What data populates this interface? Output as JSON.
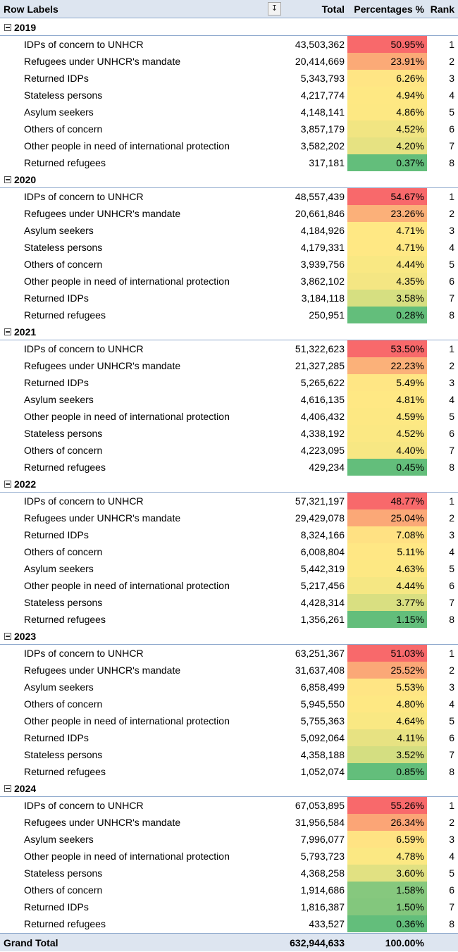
{
  "header": {
    "row_labels": "Row Labels",
    "total": "Total",
    "percentages": "Percentages %",
    "rank": "Rank",
    "filter_icon": "sort-filter-icon"
  },
  "groups": [
    {
      "year": "2019",
      "items": [
        {
          "label": "IDPs of concern to UNHCR",
          "total": "43,503,362",
          "pct": "50.95%",
          "pct_value": 50.95,
          "rank": "1",
          "color": "#f8696b"
        },
        {
          "label": "Refugees under UNHCR's mandate",
          "total": "20,414,669",
          "pct": "23.91%",
          "pct_value": 23.91,
          "rank": "2",
          "color": "#fbaa77"
        },
        {
          "label": "Returned IDPs",
          "total": "5,343,793",
          "pct": "6.26%",
          "pct_value": 6.26,
          "rank": "3",
          "color": "#ffe584"
        },
        {
          "label": "Stateless persons",
          "total": "4,217,774",
          "pct": "4.94%",
          "pct_value": 4.94,
          "rank": "4",
          "color": "#fee883"
        },
        {
          "label": "Asylum seekers",
          "total": "4,148,141",
          "pct": "4.86%",
          "pct_value": 4.86,
          "rank": "5",
          "color": "#fde883"
        },
        {
          "label": "Others of concern",
          "total": "3,857,179",
          "pct": "4.52%",
          "pct_value": 4.52,
          "rank": "6",
          "color": "#f1e582"
        },
        {
          "label": "Other people in need of international protection",
          "total": "3,582,202",
          "pct": "4.20%",
          "pct_value": 4.2,
          "rank": "7",
          "color": "#e6e282"
        },
        {
          "label": "Returned refugees",
          "total": "317,181",
          "pct": "0.37%",
          "pct_value": 0.37,
          "rank": "8",
          "color": "#63be7b"
        }
      ]
    },
    {
      "year": "2020",
      "items": [
        {
          "label": "IDPs of concern to UNHCR",
          "total": "48,557,439",
          "pct": "54.67%",
          "pct_value": 54.67,
          "rank": "1",
          "color": "#f8696b"
        },
        {
          "label": "Refugees under UNHCR's mandate",
          "total": "20,661,846",
          "pct": "23.26%",
          "pct_value": 23.26,
          "rank": "2",
          "color": "#fbb079"
        },
        {
          "label": "Asylum seekers",
          "total": "4,184,926",
          "pct": "4.71%",
          "pct_value": 4.71,
          "rank": "3",
          "color": "#ffe884"
        },
        {
          "label": "Stateless persons",
          "total": "4,179,331",
          "pct": "4.71%",
          "pct_value": 4.71,
          "rank": "4",
          "color": "#ffe884"
        },
        {
          "label": "Others of concern",
          "total": "3,939,756",
          "pct": "4.44%",
          "pct_value": 4.44,
          "rank": "5",
          "color": "#f9e883"
        },
        {
          "label": "Other people in need of international protection",
          "total": "3,862,102",
          "pct": "4.35%",
          "pct_value": 4.35,
          "rank": "6",
          "color": "#f4e683"
        },
        {
          "label": "Returned IDPs",
          "total": "3,184,118",
          "pct": "3.58%",
          "pct_value": 3.58,
          "rank": "7",
          "color": "#d6df81"
        },
        {
          "label": "Returned refugees",
          "total": "250,951",
          "pct": "0.28%",
          "pct_value": 0.28,
          "rank": "8",
          "color": "#63be7b"
        }
      ]
    },
    {
      "year": "2021",
      "items": [
        {
          "label": "IDPs of concern to UNHCR",
          "total": "51,322,623",
          "pct": "53.50%",
          "pct_value": 53.5,
          "rank": "1",
          "color": "#f8696b"
        },
        {
          "label": "Refugees under UNHCR's mandate",
          "total": "21,327,285",
          "pct": "22.23%",
          "pct_value": 22.23,
          "rank": "2",
          "color": "#fbb179"
        },
        {
          "label": "Returned IDPs",
          "total": "5,265,622",
          "pct": "5.49%",
          "pct_value": 5.49,
          "rank": "3",
          "color": "#ffe684"
        },
        {
          "label": "Asylum seekers",
          "total": "4,616,135",
          "pct": "4.81%",
          "pct_value": 4.81,
          "rank": "4",
          "color": "#ffe884"
        },
        {
          "label": "Other people in need of international protection",
          "total": "4,406,432",
          "pct": "4.59%",
          "pct_value": 4.59,
          "rank": "5",
          "color": "#fde883"
        },
        {
          "label": "Stateless persons",
          "total": "4,338,192",
          "pct": "4.52%",
          "pct_value": 4.52,
          "rank": "6",
          "color": "#fbe883"
        },
        {
          "label": "Others of concern",
          "total": "4,223,095",
          "pct": "4.40%",
          "pct_value": 4.4,
          "rank": "7",
          "color": "#f7e783"
        },
        {
          "label": "Returned refugees",
          "total": "429,234",
          "pct": "0.45%",
          "pct_value": 0.45,
          "rank": "8",
          "color": "#63be7b"
        }
      ]
    },
    {
      "year": "2022",
      "items": [
        {
          "label": "IDPs of concern to UNHCR",
          "total": "57,321,197",
          "pct": "48.77%",
          "pct_value": 48.77,
          "rank": "1",
          "color": "#f8696b"
        },
        {
          "label": "Refugees under UNHCR's mandate",
          "total": "29,429,078",
          "pct": "25.04%",
          "pct_value": 25.04,
          "rank": "2",
          "color": "#fba877"
        },
        {
          "label": "Returned IDPs",
          "total": "8,324,166",
          "pct": "7.08%",
          "pct_value": 7.08,
          "rank": "3",
          "color": "#ffe183"
        },
        {
          "label": "Others of concern",
          "total": "6,008,804",
          "pct": "5.11%",
          "pct_value": 5.11,
          "rank": "4",
          "color": "#ffe784"
        },
        {
          "label": "Asylum seekers",
          "total": "5,442,319",
          "pct": "4.63%",
          "pct_value": 4.63,
          "rank": "5",
          "color": "#fde883"
        },
        {
          "label": "Other people in need of international protection",
          "total": "5,217,456",
          "pct": "4.44%",
          "pct_value": 4.44,
          "rank": "6",
          "color": "#f5e783"
        },
        {
          "label": "Stateless persons",
          "total": "4,428,314",
          "pct": "3.77%",
          "pct_value": 3.77,
          "rank": "7",
          "color": "#d9df81"
        },
        {
          "label": "Returned refugees",
          "total": "1,356,261",
          "pct": "1.15%",
          "pct_value": 1.15,
          "rank": "8",
          "color": "#63be7b"
        }
      ]
    },
    {
      "year": "2023",
      "items": [
        {
          "label": "IDPs of concern to UNHCR",
          "total": "63,251,367",
          "pct": "51.03%",
          "pct_value": 51.03,
          "rank": "1",
          "color": "#f8696b"
        },
        {
          "label": "Refugees under UNHCR's mandate",
          "total": "31,637,408",
          "pct": "25.52%",
          "pct_value": 25.52,
          "rank": "2",
          "color": "#fba877"
        },
        {
          "label": "Asylum seekers",
          "total": "6,858,499",
          "pct": "5.53%",
          "pct_value": 5.53,
          "rank": "3",
          "color": "#ffe584"
        },
        {
          "label": "Others of concern",
          "total": "5,945,550",
          "pct": "4.80%",
          "pct_value": 4.8,
          "rank": "4",
          "color": "#fee883"
        },
        {
          "label": "Other people in need of international protection",
          "total": "5,755,363",
          "pct": "4.64%",
          "pct_value": 4.64,
          "rank": "5",
          "color": "#f9e883"
        },
        {
          "label": "Returned IDPs",
          "total": "5,092,064",
          "pct": "4.11%",
          "pct_value": 4.11,
          "rank": "6",
          "color": "#e7e282"
        },
        {
          "label": "Stateless persons",
          "total": "4,358,188",
          "pct": "3.52%",
          "pct_value": 3.52,
          "rank": "7",
          "color": "#d4de81"
        },
        {
          "label": "Returned refugees",
          "total": "1,052,074",
          "pct": "0.85%",
          "pct_value": 0.85,
          "rank": "8",
          "color": "#63be7b"
        }
      ]
    },
    {
      "year": "2024",
      "items": [
        {
          "label": "IDPs of concern to UNHCR",
          "total": "67,053,895",
          "pct": "55.26%",
          "pct_value": 55.26,
          "rank": "1",
          "color": "#f8696b"
        },
        {
          "label": "Refugees under UNHCR's mandate",
          "total": "31,956,584",
          "pct": "26.34%",
          "pct_value": 26.34,
          "rank": "2",
          "color": "#fba576"
        },
        {
          "label": "Asylum seekers",
          "total": "7,996,077",
          "pct": "6.59%",
          "pct_value": 6.59,
          "rank": "3",
          "color": "#ffe383"
        },
        {
          "label": "Other people in need of international protection",
          "total": "5,793,723",
          "pct": "4.78%",
          "pct_value": 4.78,
          "rank": "4",
          "color": "#fbe883"
        },
        {
          "label": "Stateless persons",
          "total": "4,368,258",
          "pct": "3.60%",
          "pct_value": 3.6,
          "rank": "5",
          "color": "#e1e182"
        },
        {
          "label": "Others of concern",
          "total": "1,914,686",
          "pct": "1.58%",
          "pct_value": 1.58,
          "rank": "6",
          "color": "#86c87e"
        },
        {
          "label": "Returned IDPs",
          "total": "1,816,387",
          "pct": "1.50%",
          "pct_value": 1.5,
          "rank": "7",
          "color": "#83c77d"
        },
        {
          "label": "Returned refugees",
          "total": "433,527",
          "pct": "0.36%",
          "pct_value": 0.36,
          "rank": "8",
          "color": "#63be7b"
        }
      ]
    }
  ],
  "grand_total": {
    "label": "Grand Total",
    "total": "632,944,633",
    "pct": "100.00%"
  }
}
